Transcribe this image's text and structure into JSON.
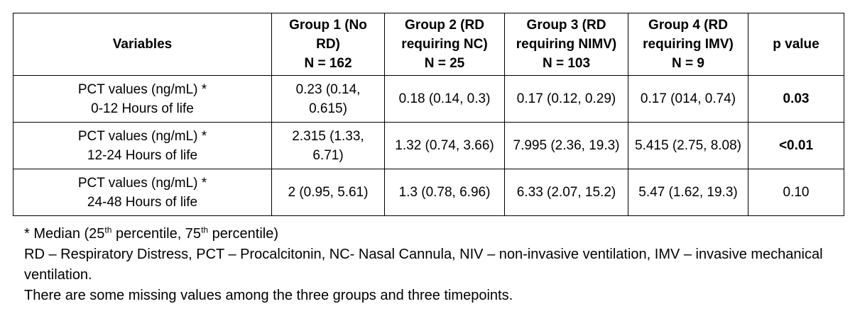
{
  "table": {
    "header": [
      {
        "label": "Variables"
      },
      {
        "label": "Group 1 (No RD)",
        "n": "N = 162"
      },
      {
        "label": "Group 2 (RD requiring NC)",
        "n": "N = 25"
      },
      {
        "label": "Group 3 (RD requiring NIMV)",
        "n": "N = 103"
      },
      {
        "label": "Group 4 (RD requiring IMV)",
        "n": "N = 9"
      },
      {
        "label": "p value"
      }
    ],
    "rows": [
      {
        "variable": "PCT values (ng/mL) *",
        "time": "0-12 Hours of life",
        "cells": [
          "0.23 (0.14, 0.615)",
          "0.18 (0.14, 0.3)",
          "0.17 (0.12, 0.29)",
          "0.17 (014, 0.74)"
        ],
        "p_value": "0.03",
        "p_bold": true
      },
      {
        "variable": "PCT values (ng/mL) *",
        "time": "12-24 Hours of life",
        "cells": [
          "2.315 (1.33, 6.71)",
          "1.32 (0.74, 3.66)",
          "7.995 (2.36, 19.3)",
          "5.415 (2.75, 8.08)"
        ],
        "p_value": "<0.01",
        "p_bold": true
      },
      {
        "variable": "PCT values (ng/mL) *",
        "time": "24-48 Hours of life",
        "cells": [
          "2 (0.95, 5.61)",
          "1.3 (0.78, 6.96)",
          "6.33 (2.07, 15.2)",
          "5.47 (1.62, 19.3)"
        ],
        "p_value": "0.10",
        "p_bold": false
      }
    ]
  },
  "footnotes": {
    "median": [
      "* Median (25",
      "th",
      " percentile, 75",
      "th",
      " percentile)"
    ],
    "abbreviations": "RD – Respiratory Distress, PCT – Procalcitonin, NC- Nasal Cannula, NIV – non-invasive ventilation, IMV – invasive mechanical ventilation.",
    "missing": "There are some missing values among the three groups and three timepoints."
  }
}
